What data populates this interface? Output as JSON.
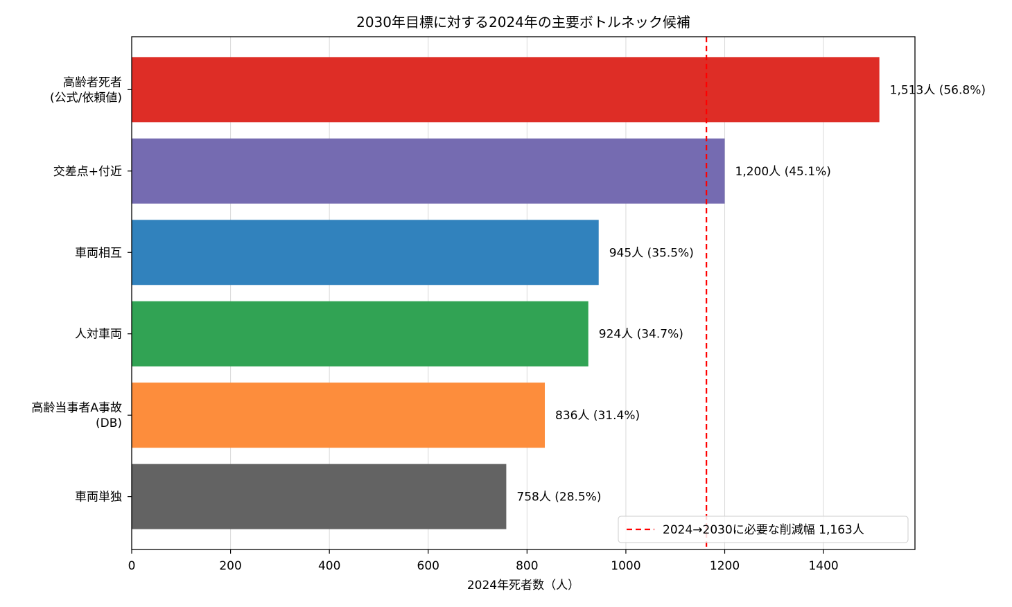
{
  "chart_data": {
    "type": "bar",
    "orientation": "horizontal",
    "title": "2030年目標に対する2024年の主要ボトルネック候補",
    "xlabel": "2024年死者数（人）",
    "ylabel": "",
    "xlim": [
      0,
      1585
    ],
    "xticks": [
      "0",
      "200",
      "400",
      "600",
      "800",
      "1000",
      "1200",
      "1400"
    ],
    "grid": "vertical",
    "categories": [
      [
        "高齢者死者",
        "(公式/依頼値)"
      ],
      [
        "交差点+付近"
      ],
      [
        "車両相互"
      ],
      [
        "人対車両"
      ],
      [
        "高齢当事者A事故",
        "(DB)"
      ],
      [
        "車両単独"
      ]
    ],
    "values": [
      1513,
      1200,
      945,
      924,
      836,
      758
    ],
    "data_labels": [
      "1,513人 (56.8%)",
      "1,200人 (45.1%)",
      "945人 (35.5%)",
      "924人 (34.7%)",
      "836人 (31.4%)",
      "758人 (28.5%)"
    ],
    "colors": [
      "#de2d26",
      "#756bb1",
      "#3182bd",
      "#31a354",
      "#fd8d3c",
      "#636363"
    ],
    "reference_line": {
      "value": 1163,
      "color": "#ff0000",
      "style": "dashed",
      "label": "2024→2030に必要な削減幅 1,163人"
    },
    "legend_position": "lower-right"
  }
}
